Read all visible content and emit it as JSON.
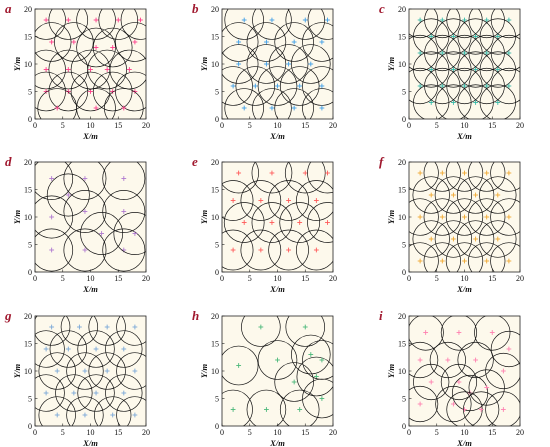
{
  "figure": {
    "xlabel": "X/m",
    "ylabel": "Y/m",
    "tick_values": [
      0,
      5,
      10,
      15,
      20
    ],
    "tick_labels": [
      "0",
      "5",
      "10",
      "15",
      "20"
    ]
  },
  "chart_data": [
    {
      "panel": "a",
      "type": "scatter",
      "xlim": [
        0,
        20
      ],
      "ylim": [
        0,
        20
      ],
      "marker_color": "#ff3d8b",
      "circle_radius": 3.5,
      "points": [
        [
          2,
          18
        ],
        [
          6,
          18
        ],
        [
          11,
          18
        ],
        [
          15,
          18
        ],
        [
          19,
          18
        ],
        [
          3,
          14
        ],
        [
          7,
          14
        ],
        [
          11,
          13
        ],
        [
          14,
          13
        ],
        [
          18,
          14
        ],
        [
          2,
          9
        ],
        [
          6,
          9
        ],
        [
          10,
          9
        ],
        [
          13,
          9
        ],
        [
          17,
          9
        ],
        [
          2,
          5
        ],
        [
          6,
          5
        ],
        [
          10,
          5
        ],
        [
          14,
          5
        ],
        [
          18,
          5
        ],
        [
          4,
          2
        ],
        [
          11,
          2
        ],
        [
          16,
          2
        ]
      ]
    },
    {
      "panel": "b",
      "type": "scatter",
      "xlim": [
        0,
        20
      ],
      "ylim": [
        0,
        20
      ],
      "marker_color": "#3f9fe8",
      "circle_radius": 3.5,
      "points": [
        [
          4,
          18
        ],
        [
          9,
          18
        ],
        [
          15,
          18
        ],
        [
          19,
          18
        ],
        [
          3,
          14
        ],
        [
          8,
          14
        ],
        [
          13,
          14
        ],
        [
          18,
          14
        ],
        [
          3,
          10
        ],
        [
          8,
          10
        ],
        [
          12,
          10
        ],
        [
          16,
          10
        ],
        [
          2,
          6
        ],
        [
          6,
          6
        ],
        [
          10,
          6
        ],
        [
          14,
          6
        ],
        [
          18,
          6
        ],
        [
          4,
          2
        ],
        [
          9,
          2
        ],
        [
          13,
          2
        ],
        [
          18,
          2
        ]
      ]
    },
    {
      "panel": "c",
      "type": "scatter",
      "xlim": [
        0,
        20
      ],
      "ylim": [
        0,
        20
      ],
      "marker_color": "#35b8a8",
      "circle_radius": 3.2,
      "points": [
        [
          2,
          18
        ],
        [
          6,
          18
        ],
        [
          10,
          18
        ],
        [
          14,
          18
        ],
        [
          18,
          18
        ],
        [
          4,
          15
        ],
        [
          8,
          15
        ],
        [
          12,
          15
        ],
        [
          16,
          15
        ],
        [
          2,
          12
        ],
        [
          6,
          12
        ],
        [
          10,
          12
        ],
        [
          14,
          12
        ],
        [
          18,
          12
        ],
        [
          4,
          9
        ],
        [
          8,
          9
        ],
        [
          12,
          9
        ],
        [
          16,
          9
        ],
        [
          2,
          6
        ],
        [
          6,
          6
        ],
        [
          10,
          6
        ],
        [
          14,
          6
        ],
        [
          18,
          6
        ],
        [
          4,
          3
        ],
        [
          8,
          3
        ],
        [
          12,
          3
        ],
        [
          16,
          3
        ]
      ]
    },
    {
      "panel": "d",
      "type": "scatter",
      "xlim": [
        0,
        20
      ],
      "ylim": [
        0,
        20
      ],
      "marker_color": "#b07ad0",
      "circle_radius": 3.8,
      "points": [
        [
          3,
          17
        ],
        [
          9,
          17
        ],
        [
          16,
          17
        ],
        [
          3,
          10
        ],
        [
          9,
          11
        ],
        [
          16,
          11
        ],
        [
          3,
          4
        ],
        [
          9,
          4
        ],
        [
          16,
          4
        ],
        [
          12,
          7
        ],
        [
          6,
          14
        ],
        [
          18,
          7
        ]
      ]
    },
    {
      "panel": "e",
      "type": "scatter",
      "xlim": [
        0,
        20
      ],
      "ylim": [
        0,
        20
      ],
      "marker_color": "#ff5a5a",
      "circle_radius": 3.6,
      "points": [
        [
          3,
          18
        ],
        [
          9,
          18
        ],
        [
          15,
          18
        ],
        [
          19,
          18
        ],
        [
          2,
          13
        ],
        [
          7,
          13
        ],
        [
          12,
          13
        ],
        [
          17,
          13
        ],
        [
          4,
          9
        ],
        [
          9,
          9
        ],
        [
          14,
          9
        ],
        [
          19,
          9
        ],
        [
          2,
          4
        ],
        [
          7,
          4
        ],
        [
          12,
          4
        ],
        [
          17,
          4
        ]
      ]
    },
    {
      "panel": "f",
      "type": "scatter",
      "xlim": [
        0,
        20
      ],
      "ylim": [
        0,
        20
      ],
      "marker_color": "#f0a830",
      "circle_radius": 3.3,
      "points": [
        [
          2,
          18
        ],
        [
          6,
          18
        ],
        [
          10,
          18
        ],
        [
          14,
          18
        ],
        [
          18,
          18
        ],
        [
          4,
          14
        ],
        [
          8,
          14
        ],
        [
          12,
          14
        ],
        [
          16,
          14
        ],
        [
          2,
          10
        ],
        [
          6,
          10
        ],
        [
          10,
          10
        ],
        [
          14,
          10
        ],
        [
          18,
          10
        ],
        [
          4,
          6
        ],
        [
          8,
          6
        ],
        [
          12,
          6
        ],
        [
          16,
          6
        ],
        [
          2,
          2
        ],
        [
          6,
          2
        ],
        [
          10,
          2
        ],
        [
          14,
          2
        ],
        [
          18,
          2
        ]
      ]
    },
    {
      "panel": "g",
      "type": "scatter",
      "xlim": [
        0,
        20
      ],
      "ylim": [
        0,
        20
      ],
      "marker_color": "#7aa8d8",
      "circle_radius": 3.3,
      "points": [
        [
          3,
          18
        ],
        [
          8,
          18
        ],
        [
          13,
          18
        ],
        [
          18,
          18
        ],
        [
          2,
          14
        ],
        [
          6,
          14
        ],
        [
          11,
          14
        ],
        [
          16,
          14
        ],
        [
          4,
          10
        ],
        [
          9,
          10
        ],
        [
          13,
          10
        ],
        [
          18,
          10
        ],
        [
          2,
          6
        ],
        [
          7,
          6
        ],
        [
          11,
          6
        ],
        [
          16,
          6
        ],
        [
          4,
          2
        ],
        [
          9,
          2
        ],
        [
          14,
          2
        ],
        [
          18,
          2
        ]
      ]
    },
    {
      "panel": "h",
      "type": "scatter",
      "xlim": [
        0,
        20
      ],
      "ylim": [
        0,
        20
      ],
      "marker_color": "#4bb87a",
      "circle_radius": 3.5,
      "points": [
        [
          7,
          18
        ],
        [
          15,
          18
        ],
        [
          3,
          11
        ],
        [
          10,
          12
        ],
        [
          16,
          13
        ],
        [
          17,
          9
        ],
        [
          13,
          8
        ],
        [
          18,
          5
        ],
        [
          2,
          3
        ],
        [
          8,
          3
        ],
        [
          14,
          3
        ],
        [
          18,
          12
        ]
      ]
    },
    {
      "panel": "i",
      "type": "scatter",
      "xlim": [
        0,
        20
      ],
      "ylim": [
        0,
        20
      ],
      "marker_color": "#ff80b0",
      "circle_radius": 3.2,
      "points": [
        [
          3,
          17
        ],
        [
          9,
          17
        ],
        [
          15,
          17
        ],
        [
          18,
          14
        ],
        [
          2,
          12
        ],
        [
          7,
          12
        ],
        [
          12,
          12
        ],
        [
          17,
          10
        ],
        [
          4,
          8
        ],
        [
          9,
          8
        ],
        [
          11,
          6
        ],
        [
          14,
          7
        ],
        [
          8,
          4
        ],
        [
          10,
          3
        ],
        [
          13,
          3
        ],
        [
          17,
          3
        ],
        [
          2,
          4
        ]
      ]
    }
  ]
}
